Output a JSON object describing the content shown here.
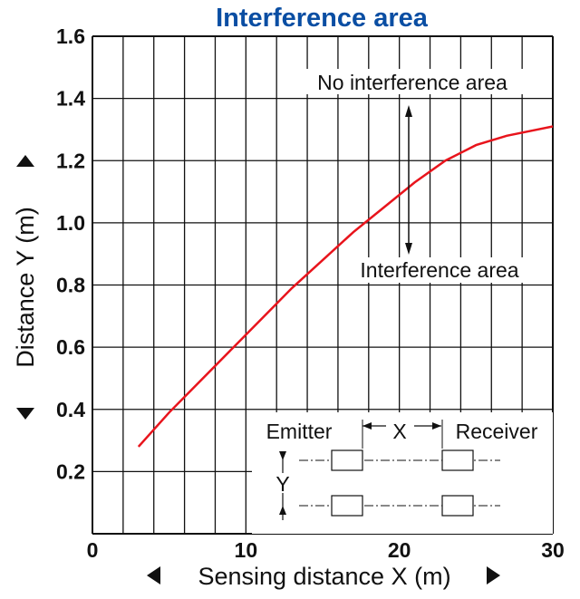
{
  "chart_data": {
    "type": "line",
    "title": "Interference area",
    "xlabel": "Sensing distance X (m)",
    "ylabel": "Distance Y (m)",
    "xlim": [
      0,
      30
    ],
    "ylim": [
      0,
      1.6
    ],
    "x_ticks": [
      "0",
      "10",
      "20",
      "30"
    ],
    "y_ticks": [
      "0.2",
      "0.4",
      "0.6",
      "0.8",
      "1.0",
      "1.2",
      "1.4",
      "1.6"
    ],
    "grid": true,
    "series": [
      {
        "color": "#e8141c",
        "points": [
          [
            3,
            0.28
          ],
          [
            5,
            0.39
          ],
          [
            7,
            0.49
          ],
          [
            9,
            0.59
          ],
          [
            11,
            0.69
          ],
          [
            13,
            0.79
          ],
          [
            15,
            0.88
          ],
          [
            17,
            0.97
          ],
          [
            19,
            1.05
          ],
          [
            21,
            1.13
          ],
          [
            23,
            1.2
          ],
          [
            25,
            1.25
          ],
          [
            27,
            1.28
          ],
          [
            29,
            1.3
          ],
          [
            30,
            1.31
          ]
        ]
      }
    ],
    "annotations": {
      "above": "No interference area",
      "below": "Interference area"
    },
    "inset": {
      "emitter": "Emitter",
      "receiver": "Receiver",
      "x_label": "X",
      "y_label": "Y"
    }
  },
  "colors": {
    "title": "#0a4ea3",
    "grid": "#111111",
    "curve": "#e8141c"
  }
}
